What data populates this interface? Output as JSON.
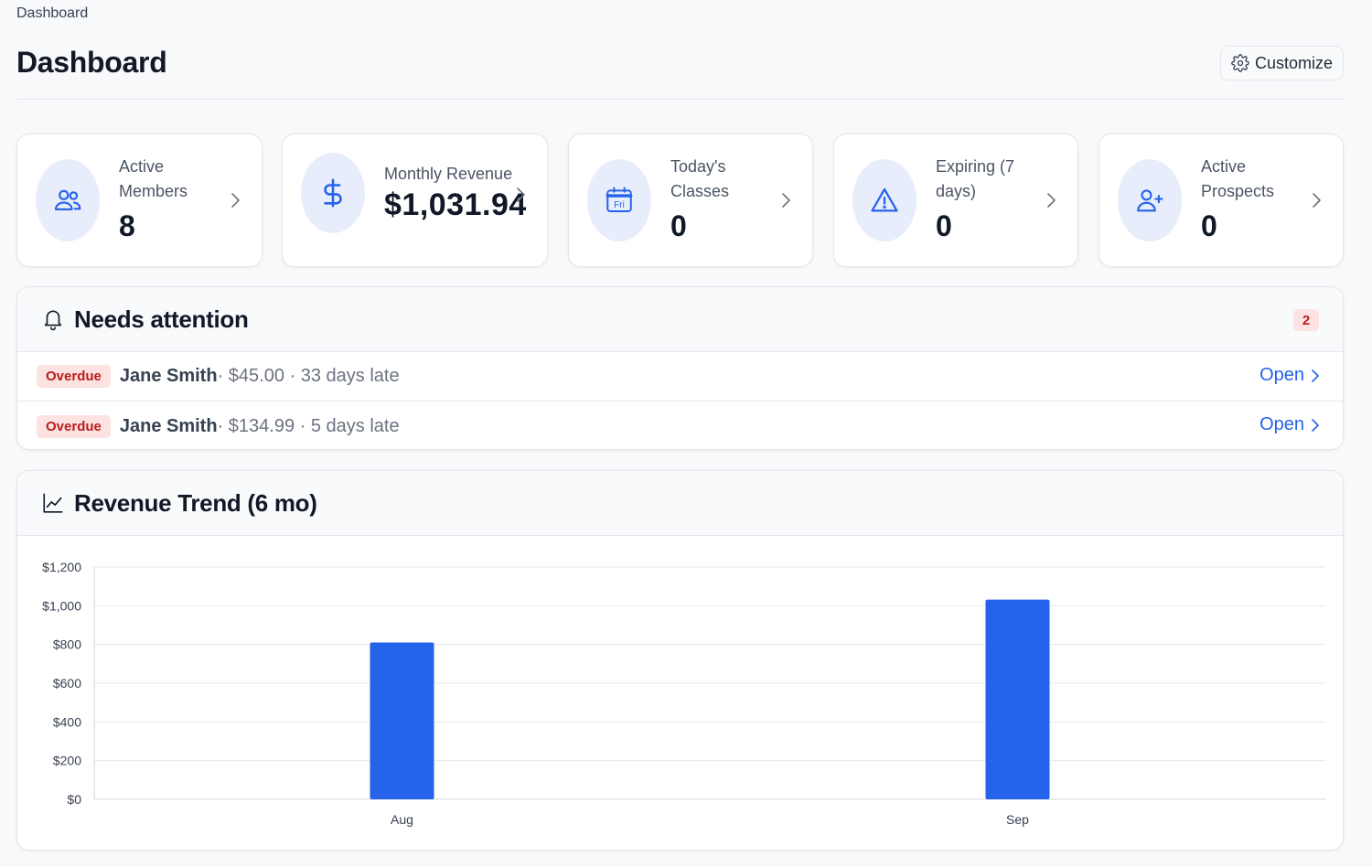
{
  "breadcrumb": "Dashboard",
  "page_title": "Dashboard",
  "customize_label": "Customize",
  "accent_color": "#2563eb",
  "stats": [
    {
      "label": "Active Members",
      "value": "8",
      "icon": "users-icon"
    },
    {
      "label": "Monthly Revenue",
      "value": "$1,031.94",
      "icon": "dollar-icon"
    },
    {
      "label": "Today's Classes",
      "value": "0",
      "icon": "calendar-icon",
      "icon_text": "Fri"
    },
    {
      "label": "Expiring (7 days)",
      "value": "0",
      "icon": "warning-icon"
    },
    {
      "label": "Active Prospects",
      "value": "0",
      "icon": "user-plus-icon"
    }
  ],
  "attention": {
    "title": "Needs attention",
    "count": "2",
    "items": [
      {
        "badge": "Overdue",
        "name": "Jane Smith",
        "detail": " · $45.00 · 33 days late",
        "action": "Open"
      },
      {
        "badge": "Overdue",
        "name": "Jane Smith",
        "detail": " · $134.99 · 5 days late",
        "action": "Open"
      }
    ]
  },
  "revenue": {
    "title": "Revenue Trend (6 mo)"
  },
  "chart_data": {
    "type": "bar",
    "title": "Revenue Trend (6 mo)",
    "categories": [
      "Aug",
      "Sep"
    ],
    "values": [
      810,
      1031.94
    ],
    "ylim": [
      0,
      1200
    ],
    "yticks": [
      "$0",
      "$200",
      "$400",
      "$600",
      "$800",
      "$1,000",
      "$1,200"
    ],
    "ytick_values": [
      0,
      200,
      400,
      600,
      800,
      1000,
      1200
    ],
    "grid": true,
    "bar_color": "#2563eb"
  }
}
